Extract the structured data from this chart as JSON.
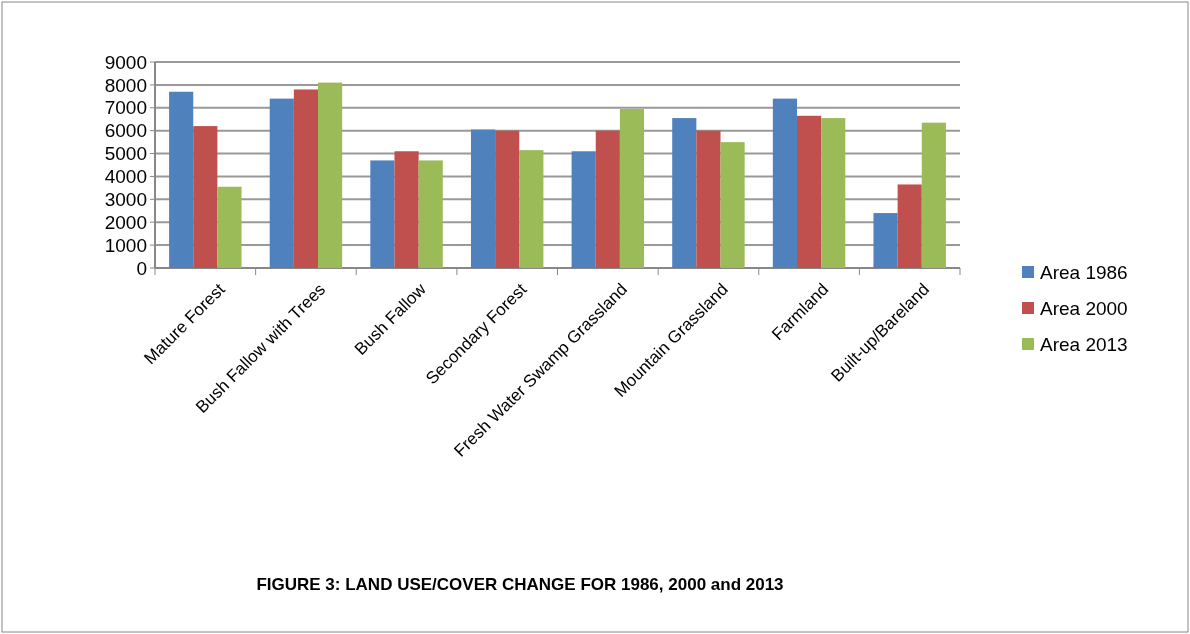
{
  "chart_data": {
    "type": "bar",
    "title": "FIGURE 3: LAND USE/COVER CHANGE FOR 1986, 2000  and 2013",
    "categories": [
      "Mature Forest",
      "Bush Fallow with Trees",
      "Bush Fallow",
      "Secondary Forest",
      "Fresh Water Swamp Grassland",
      "Mountain Grassland",
      "Farmland",
      "Built-up/Bareland"
    ],
    "series": [
      {
        "name": "Area 1986",
        "color": "#4f81bd",
        "values": [
          7700,
          7400,
          4700,
          6050,
          5100,
          6550,
          7400,
          2400
        ]
      },
      {
        "name": "Area 2000",
        "color": "#c0504d",
        "values": [
          6200,
          7800,
          5100,
          6000,
          6000,
          6000,
          6650,
          3650
        ]
      },
      {
        "name": "Area 2013",
        "color": "#9bbb59",
        "values": [
          3550,
          8100,
          4700,
          5150,
          6950,
          5500,
          6550,
          6350
        ]
      }
    ],
    "ylim": [
      0,
      9000
    ],
    "yticks": [
      0,
      1000,
      2000,
      3000,
      4000,
      5000,
      6000,
      7000,
      8000,
      9000
    ],
    "grid": "y",
    "legend": "right"
  }
}
